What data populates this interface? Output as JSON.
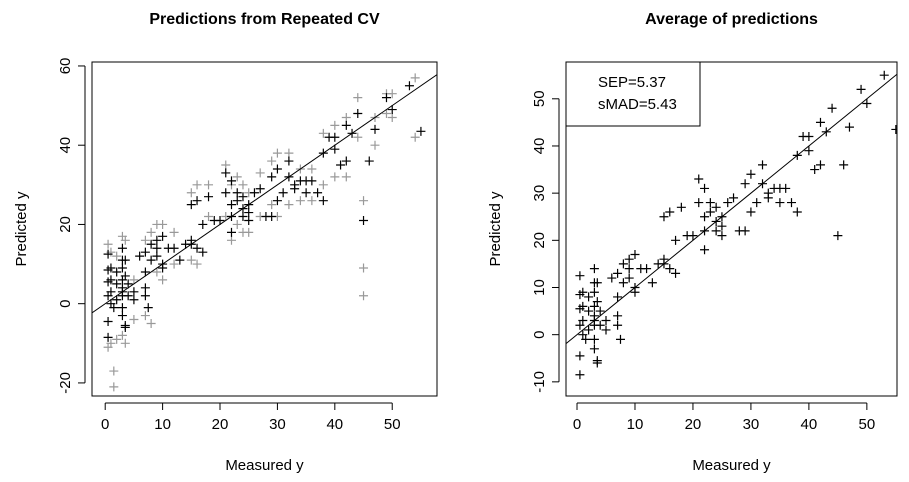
{
  "chart_data": [
    {
      "type": "scatter",
      "title": "Predictions from Repeated CV",
      "x_label": "Measured y",
      "y_label": "Predicted y",
      "xlim": [
        -2.3,
        57.8
      ],
      "ylim": [
        -23.3,
        61
      ],
      "xticks": [
        0,
        10,
        20,
        30,
        40,
        50
      ],
      "yticks": [
        -20,
        0,
        20,
        40,
        60
      ],
      "line": {
        "intercept": 0,
        "slope": 1,
        "color": "#000000"
      },
      "series": [
        {
          "color": "#999999",
          "x": [
            0.5,
            0.5,
            1,
            1,
            2,
            2,
            3,
            3,
            3.5,
            3.5,
            5,
            5,
            7,
            7,
            9,
            9,
            10,
            10,
            12,
            12,
            15,
            15,
            16,
            16,
            18,
            18,
            21,
            21,
            22,
            22,
            23,
            23,
            24,
            24,
            25,
            25,
            27,
            27,
            29,
            29,
            30,
            30,
            32,
            32,
            34,
            34,
            36,
            36,
            38,
            38,
            40,
            40,
            42,
            42,
            44,
            44,
            45,
            45,
            45,
            47,
            47,
            49,
            49,
            50,
            50,
            54,
            54,
            1.5,
            1.5,
            8,
            8
          ],
          "values": [
            15,
            -11,
            13,
            -10,
            12,
            -9,
            17,
            -8,
            16,
            -10,
            6,
            -4,
            16,
            -3,
            20,
            8,
            20,
            6,
            18,
            10,
            28,
            11,
            30,
            10,
            30,
            22,
            35,
            22,
            30,
            16,
            32,
            20,
            30,
            18,
            28,
            18,
            33,
            22,
            36,
            25,
            38,
            22,
            38,
            25,
            34,
            26,
            34,
            26,
            43,
            30,
            45,
            32,
            47,
            32,
            52,
            42,
            26,
            9,
            2,
            47,
            40,
            53,
            48,
            53,
            47,
            57,
            42,
            -17,
            -21,
            18,
            -5
          ]
        },
        {
          "color": "#000000",
          "x": [
            0.5,
            0.5,
            0.5,
            0.5,
            0.5,
            0.5,
            1,
            1,
            1,
            1,
            1.5,
            2,
            2,
            2,
            3,
            3,
            3,
            3,
            3,
            3,
            3,
            3,
            3,
            3.5,
            3.5,
            3.5,
            3.5,
            4,
            4,
            5,
            5,
            6,
            7,
            7,
            7,
            7,
            7.5,
            8,
            8,
            9,
            9,
            9,
            10,
            10,
            10,
            11,
            12,
            13,
            14,
            15,
            15,
            15,
            16,
            16,
            17,
            17,
            18,
            19,
            20,
            21,
            21,
            22,
            22,
            22,
            22,
            23,
            23,
            24,
            24,
            24,
            25,
            25,
            25,
            26,
            27,
            28,
            29,
            29,
            30,
            30,
            31,
            32,
            32,
            33,
            33,
            34,
            35,
            35,
            36,
            37,
            38,
            38,
            39,
            40,
            40,
            41,
            42,
            42,
            43,
            44,
            45,
            46,
            47,
            49,
            50,
            53,
            55
          ],
          "values": [
            12.5,
            8.5,
            5.5,
            2,
            -4.5,
            -8.5,
            6,
            9,
            3,
            0,
            -1,
            8,
            5,
            1,
            14,
            11,
            9,
            6,
            4,
            3,
            2,
            -1,
            -3,
            -5.5,
            -6,
            11,
            7,
            2,
            5,
            3,
            1,
            12,
            8,
            13,
            4,
            2,
            -1,
            15,
            11,
            16,
            12,
            14,
            17,
            10,
            9,
            14,
            14,
            11,
            15,
            15,
            16,
            25,
            14,
            26,
            13,
            20,
            27,
            21,
            21,
            33,
            28,
            31,
            25,
            22,
            18,
            26,
            28,
            22,
            24,
            27,
            25,
            21,
            23,
            28,
            29,
            22,
            22,
            32,
            34,
            26,
            28,
            32,
            36,
            29,
            30,
            31,
            28,
            31,
            31,
            28,
            38,
            26,
            42,
            39,
            42,
            35,
            36,
            45,
            43,
            48,
            21,
            36,
            44,
            52,
            49,
            55,
            43.5
          ]
        }
      ]
    },
    {
      "type": "scatter",
      "title": "Average of predictions",
      "x_label": "Measured y",
      "y_label": "Predicted y",
      "xlim": [
        -1.9,
        55.2
      ],
      "ylim": [
        -13,
        57.8
      ],
      "xticks": [
        0,
        10,
        20,
        30,
        40,
        50
      ],
      "yticks": [
        -10,
        0,
        10,
        20,
        30,
        40,
        50
      ],
      "line": {
        "intercept": 0,
        "slope": 1,
        "color": "#000000"
      },
      "legend": {
        "corner": "top-left",
        "lines": [
          "SEP=5.37",
          "sMAD=5.43"
        ]
      },
      "series": [
        {
          "color": "#000000",
          "x": [
            0.5,
            0.5,
            0.5,
            0.5,
            0.5,
            0.5,
            1,
            1,
            1,
            1,
            1.5,
            2,
            2,
            2,
            3,
            3,
            3,
            3,
            3,
            3,
            3,
            3,
            3,
            3.5,
            3.5,
            3.5,
            3.5,
            4,
            4,
            5,
            5,
            6,
            7,
            7,
            7,
            7,
            7.5,
            8,
            8,
            9,
            9,
            9,
            10,
            10,
            10,
            11,
            12,
            13,
            14,
            15,
            15,
            15,
            16,
            16,
            17,
            17,
            18,
            19,
            20,
            21,
            21,
            22,
            22,
            22,
            22,
            23,
            23,
            24,
            24,
            24,
            25,
            25,
            25,
            26,
            27,
            28,
            29,
            29,
            30,
            30,
            31,
            32,
            32,
            33,
            33,
            34,
            35,
            35,
            36,
            37,
            38,
            38,
            39,
            40,
            40,
            41,
            42,
            42,
            43,
            44,
            45,
            46,
            47,
            49,
            50,
            53,
            55
          ],
          "values": [
            12.5,
            8.5,
            5.5,
            2,
            -4.5,
            -8.5,
            6,
            9,
            3,
            0,
            -1,
            8,
            5,
            1,
            14,
            11,
            9,
            6,
            4,
            3,
            2,
            -1,
            -3,
            -5.5,
            -6,
            11,
            7,
            2,
            5,
            3,
            1,
            12,
            8,
            13,
            4,
            2,
            -1,
            15,
            11,
            16,
            12,
            14,
            17,
            10,
            9,
            14,
            14,
            11,
            15,
            15,
            16,
            25,
            14,
            26,
            13,
            20,
            27,
            21,
            21,
            33,
            28,
            31,
            25,
            22,
            18,
            26,
            28,
            22,
            24,
            27,
            25,
            21,
            23,
            28,
            29,
            22,
            22,
            32,
            34,
            26,
            28,
            32,
            36,
            29,
            30,
            31,
            28,
            31,
            31,
            28,
            38,
            26,
            42,
            39,
            42,
            35,
            36,
            45,
            43,
            48,
            21,
            36,
            44,
            52,
            49,
            55,
            43.5
          ]
        }
      ]
    }
  ]
}
